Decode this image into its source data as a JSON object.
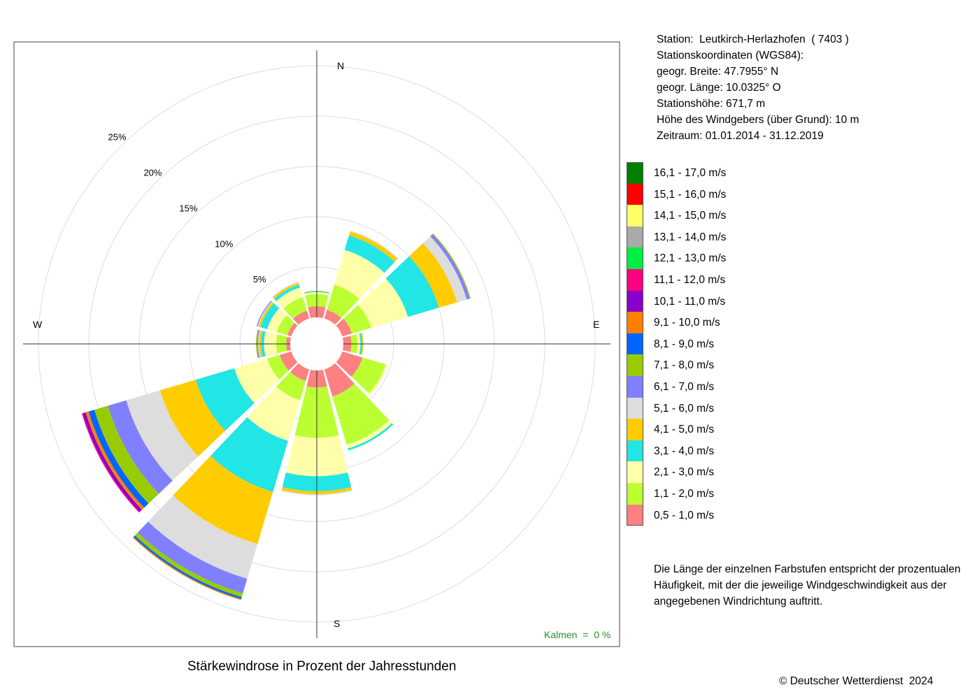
{
  "station": {
    "line1": "Station:  Leutkirch-Herlazhofen  ( 7403 )",
    "line2": "Stationskoordinaten (WGS84):",
    "line3": "geogr. Breite: 47.7955° N",
    "line4": "geogr. Länge: 10.0325° O",
    "line5": "Stationshöhe: 671,7 m",
    "line6": "Höhe des Windgebers (über Grund): 10 m",
    "line7": "Zeitraum: 01.01.2014 - 31.12.2019"
  },
  "legend": [
    {
      "label": "16,1 - 17,0 m/s",
      "color": "#008000"
    },
    {
      "label": "15,1 - 16,0 m/s",
      "color": "#ff0000"
    },
    {
      "label": "14,1 - 15,0 m/s",
      "color": "#ffff66"
    },
    {
      "label": "13,1 - 14,0 m/s",
      "color": "#aaaaaa"
    },
    {
      "label": "12,1 - 13,0 m/s",
      "color": "#00ee44"
    },
    {
      "label": "11,1 - 12,0 m/s",
      "color": "#ff0080"
    },
    {
      "label": "10,1 - 11,0 m/s",
      "color": "#8800cc"
    },
    {
      "label": "9,1 - 10,0 m/s",
      "color": "#ff8000"
    },
    {
      "label": "8,1 - 9,0 m/s",
      "color": "#0066ff"
    },
    {
      "label": "7,1 - 8,0 m/s",
      "color": "#99cc00"
    },
    {
      "label": "6,1 - 7,0 m/s",
      "color": "#8080ff"
    },
    {
      "label": "5,1 - 6,0 m/s",
      "color": "#dddddd"
    },
    {
      "label": "4,1 - 5,0 m/s",
      "color": "#ffcc00"
    },
    {
      "label": "3,1 - 4,0 m/s",
      "color": "#22e5e5"
    },
    {
      "label": "2,1 - 3,0 m/s",
      "color": "#ffffaa"
    },
    {
      "label": "1,1 - 2,0 m/s",
      "color": "#bbff33"
    },
    {
      "label": "0,5 - 1,0 m/s",
      "color": "#ff8080"
    }
  ],
  "note": "Die Länge der einzelnen Farbstufen entspricht der prozentualen Häufigkeit, mit der die jeweilige Windgeschwindigkeit aus der angegebenen Windrichtung auftritt.",
  "caption": "Stärkewindrose in Prozent der Jahresstunden",
  "copyright": "© Deutscher Wetterdienst  2024",
  "chart_data": {
    "type": "wind-rose",
    "title": "Stärkewindrose in Prozent der Jahresstunden",
    "unit": "%",
    "radial_ticks": [
      "5%",
      "10%",
      "15%",
      "20%",
      "25%"
    ],
    "radial_values": [
      5,
      10,
      15,
      20,
      25
    ],
    "cardinal_labels": {
      "N": "N",
      "E": "E",
      "S": "S",
      "W": "W"
    },
    "calm": "Kalmen  =  0 %",
    "directions_deg": [
      0,
      30,
      60,
      90,
      120,
      150,
      180,
      210,
      240,
      270,
      300,
      330
    ],
    "speed_classes": [
      "0,5 - 1,0 m/s",
      "1,1 - 2,0 m/s",
      "2,1 - 3,0 m/s",
      "3,1 - 4,0 m/s",
      "4,1 - 5,0 m/s",
      "5,1 - 6,0 m/s",
      "6,1 - 7,0 m/s",
      "7,1 - 8,0 m/s",
      "8,1 - 9,0 m/s",
      "9,1 - 10,0 m/s",
      "10,1 - 11,0 m/s",
      "11,1 - 12,0 m/s",
      "12,1 - 13,0 m/s",
      "13,1 - 14,0 m/s",
      "14,1 - 15,0 m/s",
      "15,1 - 16,0 m/s",
      "16,1 - 17,0 m/s"
    ],
    "sectors": [
      {
        "dir": 0,
        "values": [
          1.1,
          1.2,
          0.2,
          0.1,
          0.05
        ]
      },
      {
        "dir": 30,
        "values": [
          0.9,
          2.6,
          3.6,
          1.5,
          0.4,
          0.1
        ]
      },
      {
        "dir": 60,
        "values": [
          1.0,
          2.0,
          3.8,
          3.2,
          1.9,
          1.0,
          0.3,
          0.1
        ]
      },
      {
        "dir": 90,
        "values": [
          0.8,
          0.6,
          0.3,
          0.2,
          0.1
        ]
      },
      {
        "dir": 120,
        "values": [
          2.1,
          2.4,
          0.2
        ]
      },
      {
        "dir": 150,
        "values": [
          2.8,
          5.0,
          0.4,
          0.2
        ]
      },
      {
        "dir": 180,
        "values": [
          1.7,
          5.0,
          3.8,
          1.5,
          0.3,
          0.1
        ]
      },
      {
        "dir": 210,
        "values": [
          1.2,
          2.0,
          4.2,
          5.3,
          5.4,
          3.6,
          1.5,
          0.4,
          0.2,
          0.1
        ]
      },
      {
        "dir": 240,
        "values": [
          1.2,
          1.3,
          3.4,
          4.0,
          3.7,
          3.5,
          1.9,
          1.4,
          0.6,
          0.3,
          0.3,
          0.1
        ]
      },
      {
        "dir": 270,
        "values": [
          0.4,
          1.0,
          1.2,
          0.3,
          0.2,
          0.1,
          0.1,
          0.1
        ]
      },
      {
        "dir": 300,
        "values": [
          0.4,
          1.1,
          1.0,
          0.7,
          0.2,
          0.1,
          0.1
        ]
      },
      {
        "dir": 330,
        "values": [
          0.8,
          1.4,
          1.0,
          0.3,
          0.2,
          0.1
        ]
      }
    ]
  }
}
